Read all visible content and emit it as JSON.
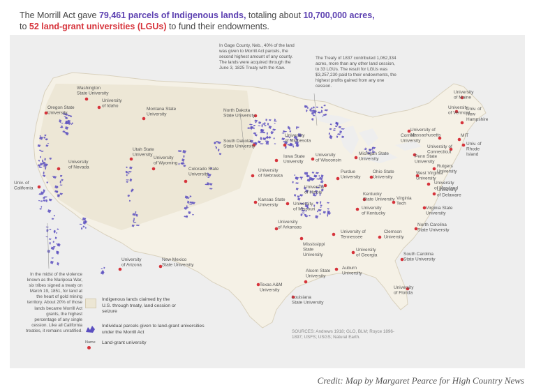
{
  "headline": {
    "line1_pre": "The Morrill Act gave ",
    "line1_parcels": "79,461 parcels of Indigenous lands,",
    "line1_mid": " totaling about ",
    "line1_acres": "10,700,000 acres,",
    "line2_pre": "to ",
    "line2_lgus": "52 land-grant universities (LGUs)",
    "line2_post": " to fund their endowments."
  },
  "annotations": {
    "gage": "In Gage County, Neb., 40% of the land was given to Morrill Act parcels, the second highest amount of any county. The lands were acquired through the June 3, 1825 Treaty with the Kaw.",
    "treaty1837": "The Treaty of 1837 contributed 1,062,334 acres, more than any other land cession, to 33 LGUs. The result for LGUs was $3,257,230 paid to their endowments, the highest profits gained from any one cession.",
    "mariposa": "In the midst of the violence known as the Mariposa War, six tribes signed a treaty on March 19, 1851, for land at the heart of gold mining territory. About 20% of those lands became Morrill Act grants, the highest percentage of any single cession. Like all California treaties, it remains unratified."
  },
  "legend": {
    "ceded": "Indigenous lands claimed by the U.S. through treaty, land cession or seizure",
    "parcels": "Individual parcels given to land-grant universities under the Morrill Act",
    "name_sample": "Name",
    "university": "Land-grant university"
  },
  "sources": "SOURCES: Andrews 1918; GLO, BLM; Royce 1896-1897; USFS; USGS; Natural Earth.",
  "credit": "Credit: Map by Margaret Pearce for High Country News",
  "colors": {
    "parcel": "#5b4fc0",
    "university": "#d6333b",
    "ceded": "#ece6d4",
    "land": "#f5f1e6",
    "water": "#eeeeee"
  },
  "universities": [
    {
      "name": "Washington State University",
      "lines": [
        "Washington",
        "State University"
      ]
    },
    {
      "name": "University of Idaho",
      "lines": [
        "University",
        "of Idaho"
      ]
    },
    {
      "name": "Oregon State University",
      "lines": [
        "Oregon State",
        "University"
      ]
    },
    {
      "name": "Montana State University",
      "lines": [
        "Montana State",
        "University"
      ]
    },
    {
      "name": "University of Nevada",
      "lines": [
        "University",
        "of Nevada"
      ]
    },
    {
      "name": "Utah State University",
      "lines": [
        "Utah State",
        "University"
      ]
    },
    {
      "name": "University of Wyoming",
      "lines": [
        "University",
        "of Wyoming"
      ]
    },
    {
      "name": "Colorado State University",
      "lines": [
        "Colorado State",
        "University"
      ]
    },
    {
      "name": "Univ. of California",
      "lines": [
        "Univ. of",
        "California"
      ]
    },
    {
      "name": "University of Arizona",
      "lines": [
        "University",
        "of Arizona"
      ]
    },
    {
      "name": "New Mexico State University",
      "lines": [
        "New Mexico",
        "State University"
      ]
    },
    {
      "name": "North Dakota State University",
      "lines": [
        "North Dakota",
        "State University"
      ]
    },
    {
      "name": "South Dakota State University",
      "lines": [
        "South Dakota",
        "State University"
      ]
    },
    {
      "name": "University of Minnesota",
      "lines": [
        "University",
        "of Minnesota"
      ]
    },
    {
      "name": "Iowa State University",
      "lines": [
        "Iowa State",
        "University"
      ]
    },
    {
      "name": "University of Nebraska",
      "lines": [
        "University",
        "of Nebraska"
      ]
    },
    {
      "name": "Kansas State University",
      "lines": [
        "Kansas State",
        "University"
      ]
    },
    {
      "name": "University of Missouri",
      "lines": [
        "University",
        "of Missouri"
      ]
    },
    {
      "name": "University of Wisconsin",
      "lines": [
        "University",
        "of Wisconsin"
      ]
    },
    {
      "name": "Michigan State University",
      "lines": [
        "Michigan State",
        "University"
      ]
    },
    {
      "name": "University of Illinois",
      "lines": [
        "University",
        "of Illinois"
      ]
    },
    {
      "name": "Purdue University",
      "lines": [
        "Purdue",
        "University"
      ]
    },
    {
      "name": "Ohio State University",
      "lines": [
        "Ohio State",
        "University"
      ]
    },
    {
      "name": "University of Arkansas",
      "lines": [
        "University",
        "of Arkansas"
      ]
    },
    {
      "name": "Texas A&M University",
      "lines": [
        "Texas A&M",
        "University"
      ]
    },
    {
      "name": "Louisiana State University",
      "lines": [
        "Louisiana",
        "State University"
      ]
    },
    {
      "name": "Mississippi State University",
      "lines": [
        "Mississippi",
        "State",
        "University"
      ]
    },
    {
      "name": "Alcorn State University",
      "lines": [
        "Alcorn State",
        "University"
      ]
    },
    {
      "name": "Auburn University",
      "lines": [
        "Auburn",
        "University"
      ]
    },
    {
      "name": "University of Georgia",
      "lines": [
        "University",
        "of Georgia"
      ]
    },
    {
      "name": "University of Florida",
      "lines": [
        "University",
        "of Florida"
      ]
    },
    {
      "name": "University of Tennessee",
      "lines": [
        "University of",
        "Tennessee"
      ]
    },
    {
      "name": "Clemson University",
      "lines": [
        "Clemson",
        "University"
      ]
    },
    {
      "name": "South Carolina State University",
      "lines": [
        "South Carolina",
        "State University"
      ]
    },
    {
      "name": "North Carolina State University",
      "lines": [
        "North Carolina",
        "State University"
      ]
    },
    {
      "name": "Kentucky State University",
      "lines": [
        "Kentucky",
        "State University"
      ]
    },
    {
      "name": "University of Kentucky",
      "lines": [
        "University",
        "of Kentucky"
      ]
    },
    {
      "name": "Virginia Tech",
      "lines": [
        "Virginia",
        "Tech"
      ]
    },
    {
      "name": "Virginia State University",
      "lines": [
        "Virginia State",
        "University"
      ]
    },
    {
      "name": "West Virginia University",
      "lines": [
        "West Virginia",
        "University"
      ]
    },
    {
      "name": "University of Maryland",
      "lines": [
        "University",
        "of Maryland"
      ]
    },
    {
      "name": "University of Delaware",
      "lines": [
        "University",
        "of Delaware"
      ]
    },
    {
      "name": "Rutgers University",
      "lines": [
        "Rutgers",
        "University"
      ]
    },
    {
      "name": "Penn State University",
      "lines": [
        "Penn State",
        "University"
      ]
    },
    {
      "name": "Cornell University",
      "lines": [
        "Cornell",
        "University"
      ]
    },
    {
      "name": "University of Connecticut",
      "lines": [
        "University of",
        "Connecticut"
      ]
    },
    {
      "name": "University of Massachusetts",
      "lines": [
        "University of",
        "Massachusetts"
      ]
    },
    {
      "name": "MIT",
      "lines": [
        "MIT"
      ]
    },
    {
      "name": "Univ. of Rhode Island",
      "lines": [
        "Univ. of",
        "Rhode",
        "Island"
      ]
    },
    {
      "name": "Univ. of New Hampshire",
      "lines": [
        "Univ. of",
        "New",
        "Hampshire"
      ]
    },
    {
      "name": "University of Vermont",
      "lines": [
        "University",
        "of Vermont"
      ]
    },
    {
      "name": "University of Maine",
      "lines": [
        "University",
        "of Maine"
      ]
    }
  ]
}
